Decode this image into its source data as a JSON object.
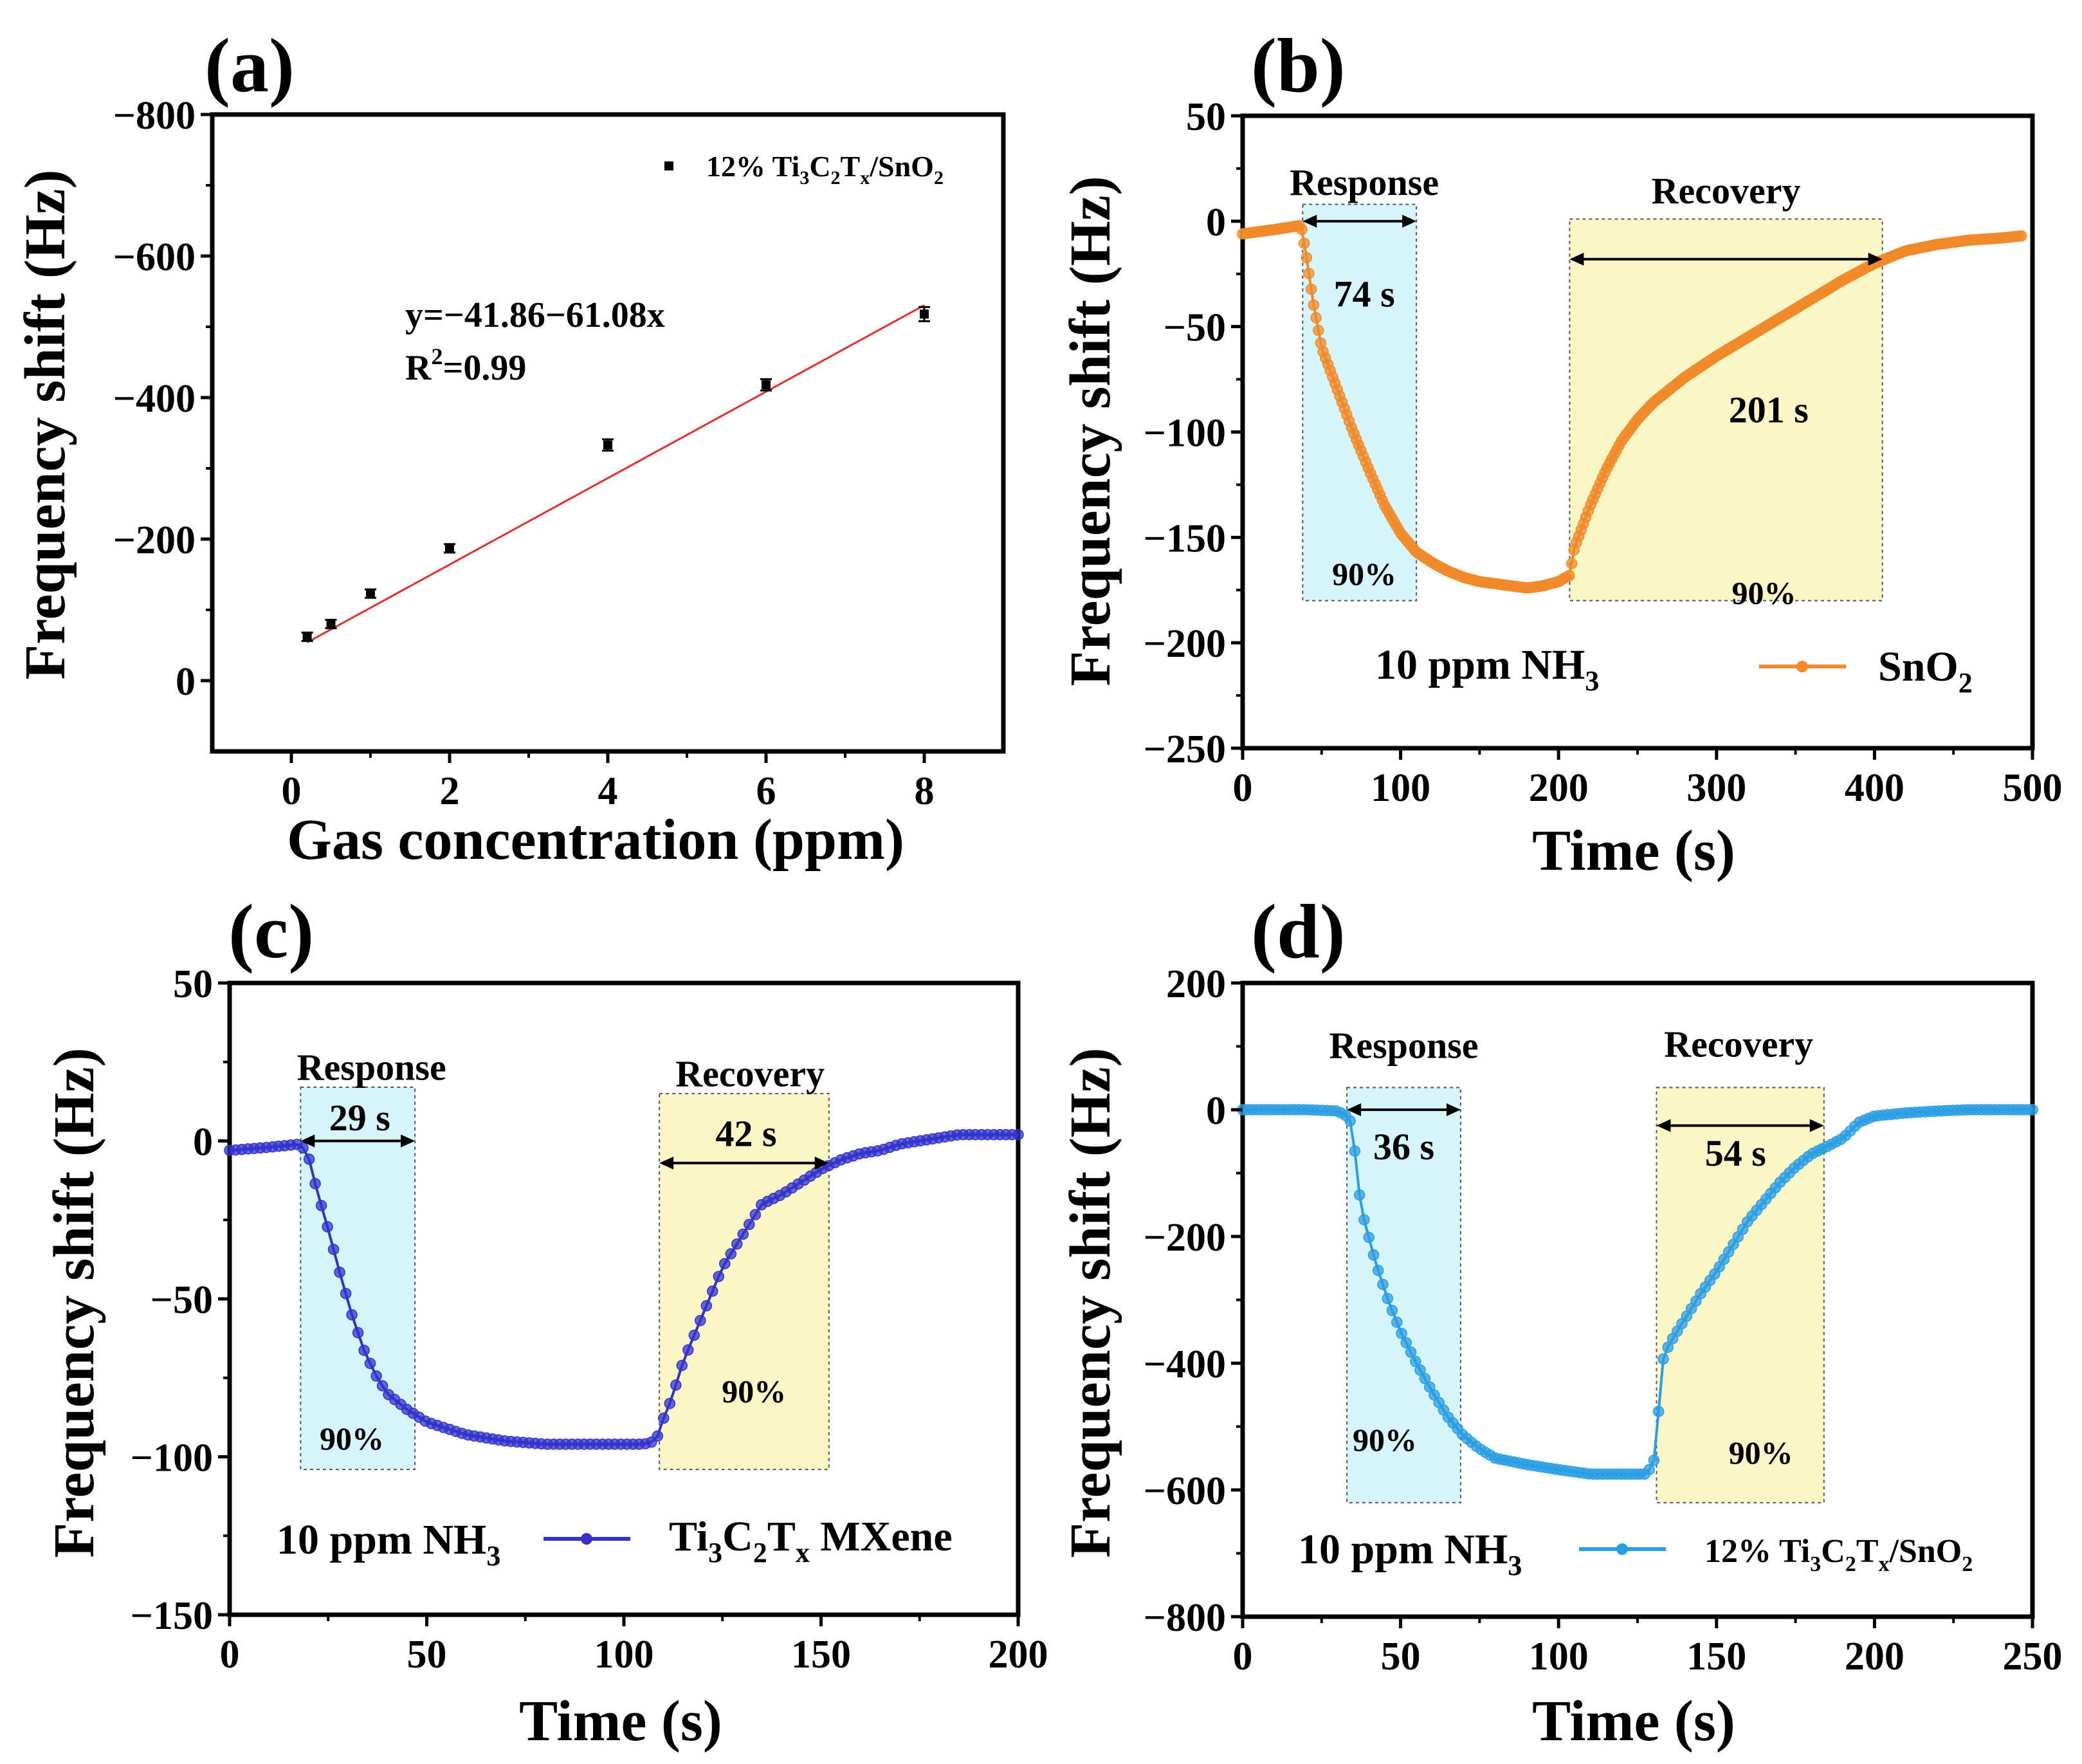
{
  "chart_data": [
    {
      "panel": "(a)",
      "type": "scatter",
      "xlabel": "Gas concentration (ppm)",
      "ylabel": "Frequency shift (Hz)",
      "xlim": [
        -1,
        9
      ],
      "ylim": [
        100,
        -800
      ],
      "xticks": [
        0,
        2,
        4,
        6,
        8
      ],
      "yticks": [
        -800,
        -600,
        -400,
        -200,
        0
      ],
      "x_tick_labels": [
        "0",
        "2",
        "4",
        "6",
        "8"
      ],
      "y_tick_labels": [
        "−800",
        "−600",
        "−400",
        "−200",
        "0"
      ],
      "series": [
        {
          "name": "12% Ti3C2Tx/SnO2",
          "legend_parts": [
            "12% Ti",
            "3",
            "C",
            "2",
            "T",
            "x",
            "/SnO",
            "2"
          ],
          "color": "#000000",
          "x": [
            0.2,
            0.5,
            1,
            2,
            4,
            6,
            8
          ],
          "y": [
            -62,
            -80,
            -123,
            -187,
            -333,
            -418,
            -518
          ],
          "yerr": [
            6,
            6,
            6,
            6,
            8,
            8,
            10
          ]
        }
      ],
      "fit": {
        "color": "#e03030",
        "intercept": -41.86,
        "slope": -61.08,
        "x_range": [
          0.2,
          8
        ],
        "equation": "y=−41.86−61.08x",
        "r2_parts": [
          "R",
          "2",
          "=0.99"
        ]
      }
    },
    {
      "panel": "(b)",
      "type": "line",
      "xlabel": "Time (s)",
      "ylabel": "Frequency shift (Hz)",
      "xlim": [
        0,
        500
      ],
      "ylim": [
        -250,
        50
      ],
      "xticks": [
        0,
        100,
        200,
        300,
        400,
        500
      ],
      "yticks": [
        -250,
        -200,
        -150,
        -100,
        -50,
        0,
        50
      ],
      "x_tick_labels": [
        "0",
        "100",
        "200",
        "300",
        "400",
        "500"
      ],
      "y_tick_labels": [
        "−250",
        "−200",
        "−150",
        "−100",
        "−50",
        "0",
        "50"
      ],
      "series": [
        {
          "name": "SnO2",
          "legend_parts": [
            "SnO",
            "2"
          ],
          "color": "#f08a2a",
          "samples": 330,
          "x": [
            0,
            20,
            37,
            40,
            45,
            50,
            60,
            70,
            80,
            90,
            100,
            110,
            120,
            130,
            140,
            150,
            160,
            170,
            180,
            190,
            200,
            207,
            210,
            220,
            230,
            240,
            250,
            260,
            280,
            300,
            320,
            340,
            360,
            380,
            400,
            420,
            440,
            460,
            480,
            493
          ],
          "y": [
            -6,
            -4,
            -2,
            -15,
            -40,
            -60,
            -80,
            -100,
            -118,
            -135,
            -148,
            -157,
            -162,
            -166,
            -169,
            -171,
            -172,
            -173,
            -174,
            -173,
            -171,
            -168,
            -155,
            -135,
            -118,
            -104,
            -94,
            -86,
            -74,
            -64,
            -55,
            -46,
            -37,
            -28,
            -20,
            -14,
            -11,
            -9,
            -8,
            -7
          ]
        }
      ],
      "shade": [
        {
          "x0": 38,
          "x1": 110,
          "y0": -180,
          "y1": 8,
          "fill": "#d6f5fa"
        },
        {
          "x0": 207,
          "x1": 405,
          "y0": -180,
          "y1": 1,
          "fill": "#fbf6c6"
        }
      ],
      "arrows": [
        {
          "x0": 38,
          "x1": 110,
          "y": 0
        },
        {
          "x0": 207,
          "x1": 405,
          "y": -18
        }
      ],
      "texts": [
        {
          "text": "Response",
          "x": 77,
          "y": 18
        },
        {
          "text": "Recovery",
          "x": 306,
          "y": 14
        },
        {
          "text": "74 s",
          "x": 77,
          "y": -35
        },
        {
          "text": "201 s",
          "x": 333,
          "y": -90
        },
        {
          "text": "90%",
          "x": 77,
          "y": -167
        },
        {
          "text": "90%",
          "x": 330,
          "y": -176
        }
      ],
      "gas_label": [
        "10 ppm NH",
        "3"
      ]
    },
    {
      "panel": "(c)",
      "type": "line",
      "xlabel": "Time (s)",
      "ylabel": "Frequency shift (Hz)",
      "xlim": [
        0,
        200
      ],
      "ylim": [
        -150,
        50
      ],
      "xticks": [
        0,
        50,
        100,
        150,
        200
      ],
      "yticks": [
        -150,
        -100,
        -50,
        0,
        50
      ],
      "x_tick_labels": [
        "0",
        "50",
        "100",
        "150",
        "200"
      ],
      "y_tick_labels": [
        "−150",
        "−100",
        "−50",
        "0",
        "50"
      ],
      "series": [
        {
          "name": "Ti3C2Tx MXene",
          "legend_parts": [
            "Ti",
            "3",
            "C",
            "2",
            "T",
            "x",
            " MXene"
          ],
          "color": "#3333cc",
          "samples": 130,
          "x": [
            0,
            10,
            18,
            20,
            22,
            25,
            28,
            31,
            34,
            37,
            40,
            45,
            50,
            60,
            70,
            80,
            90,
            100,
            105,
            108,
            109,
            110,
            112,
            115,
            120,
            125,
            130,
            135,
            140,
            145,
            150,
            155,
            160,
            165,
            170,
            175,
            180,
            185,
            190,
            195,
            200
          ],
          "y": [
            -3,
            -2,
            -1,
            -5,
            -15,
            -28,
            -42,
            -55,
            -66,
            -74,
            -80,
            -85,
            -89,
            -93,
            -95,
            -96,
            -96,
            -96,
            -96,
            -95,
            -92,
            -88,
            -82,
            -70,
            -55,
            -40,
            -30,
            -20,
            -17,
            -13,
            -9,
            -6,
            -4,
            -3,
            -1,
            0,
            1,
            2,
            2,
            2,
            2
          ]
        }
      ],
      "shade": [
        {
          "x0": 18,
          "x1": 47,
          "y0": -104,
          "y1": 17,
          "fill": "#d6f5fa"
        },
        {
          "x0": 109,
          "x1": 152,
          "y0": -104,
          "y1": 15,
          "fill": "#fbf6c6"
        }
      ],
      "arrows": [
        {
          "x0": 18,
          "x1": 47,
          "y": 0
        },
        {
          "x0": 109,
          "x1": 152,
          "y": -7
        }
      ],
      "texts": [
        {
          "text": "Response",
          "x": 36,
          "y": 23
        },
        {
          "text": "Recovery",
          "x": 132,
          "y": 21
        },
        {
          "text": "29 s",
          "x": 33,
          "y": 7
        },
        {
          "text": "42 s",
          "x": 131,
          "y": 2
        },
        {
          "text": "90%",
          "x": 31,
          "y": -94
        },
        {
          "text": "90%",
          "x": 133,
          "y": -79
        }
      ],
      "gas_label": [
        "10 ppm NH",
        "3"
      ]
    },
    {
      "panel": "(d)",
      "type": "line",
      "xlabel": "Time (s)",
      "ylabel": "Frequency shift (Hz)",
      "xlim": [
        0,
        250
      ],
      "ylim": [
        -800,
        200
      ],
      "xticks": [
        0,
        50,
        100,
        150,
        200,
        250
      ],
      "yticks": [
        -800,
        -600,
        -400,
        -200,
        0,
        200
      ],
      "x_tick_labels": [
        "0",
        "50",
        "100",
        "150",
        "200",
        "250"
      ],
      "y_tick_labels": [
        "−800",
        "−600",
        "−400",
        "−200",
        "0",
        "200"
      ],
      "series": [
        {
          "name": "12% Ti3C2Tx/SnO2",
          "legend_parts": [
            "12% Ti",
            "3",
            "C",
            "2",
            "T",
            "x",
            "/SnO",
            "2"
          ],
          "color": "#2b9ee3",
          "samples": 170,
          "x": [
            0,
            20,
            30,
            33,
            35,
            36,
            38,
            42,
            46,
            50,
            55,
            60,
            65,
            70,
            75,
            80,
            90,
            100,
            110,
            120,
            128,
            131,
            132,
            133,
            135,
            140,
            145,
            150,
            155,
            160,
            165,
            170,
            175,
            180,
            185,
            190,
            195,
            200,
            210,
            220,
            230,
            240,
            250
          ],
          "y": [
            0,
            0,
            -2,
            -10,
            -25,
            -105,
            -165,
            -240,
            -300,
            -350,
            -400,
            -445,
            -485,
            -515,
            -535,
            -550,
            -560,
            -568,
            -575,
            -575,
            -575,
            -545,
            -440,
            -395,
            -370,
            -330,
            -290,
            -255,
            -215,
            -175,
            -145,
            -115,
            -90,
            -70,
            -58,
            -45,
            -20,
            -10,
            -5,
            -2,
            0,
            0,
            0
          ]
        }
      ],
      "shade": [
        {
          "x0": 33,
          "x1": 69,
          "y0": -620,
          "y1": 35,
          "fill": "#d6f5fa"
        },
        {
          "x0": 131,
          "x1": 184,
          "y0": -620,
          "y1": 35,
          "fill": "#fbf6c6"
        }
      ],
      "arrows": [
        {
          "x0": 33,
          "x1": 69,
          "y": 0
        },
        {
          "x0": 131,
          "x1": 184,
          "y": -25
        }
      ],
      "texts": [
        {
          "text": "Response",
          "x": 51,
          "y": 100
        },
        {
          "text": "Recovery",
          "x": 157,
          "y": 102
        },
        {
          "text": "36 s",
          "x": 51,
          "y": -60
        },
        {
          "text": "54 s",
          "x": 156,
          "y": -70
        },
        {
          "text": "90%",
          "x": 45,
          "y": -520
        },
        {
          "text": "90%",
          "x": 164,
          "y": -540
        }
      ],
      "gas_label": [
        "10 ppm NH",
        "3"
      ]
    }
  ]
}
